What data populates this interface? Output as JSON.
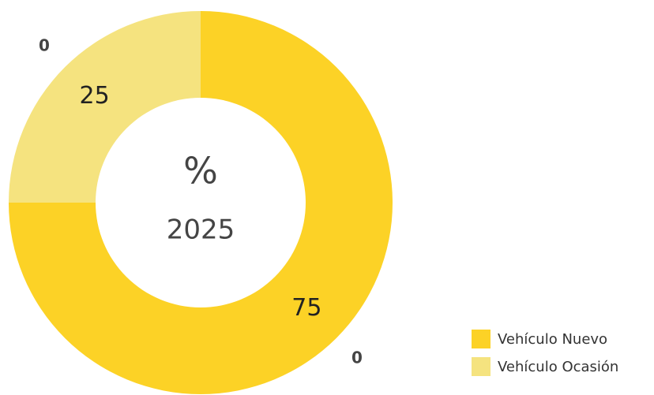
{
  "chart_data": {
    "type": "pie",
    "categories": [
      "Vehículo Nuevo",
      "Vehículo Ocasión"
    ],
    "values": [
      75,
      25
    ],
    "outer_labels": [
      0,
      0
    ],
    "colors": [
      "#fcd226",
      "#f5e37f"
    ],
    "center_symbol": "%",
    "center_label": "2025",
    "legend": "bottom-right"
  }
}
